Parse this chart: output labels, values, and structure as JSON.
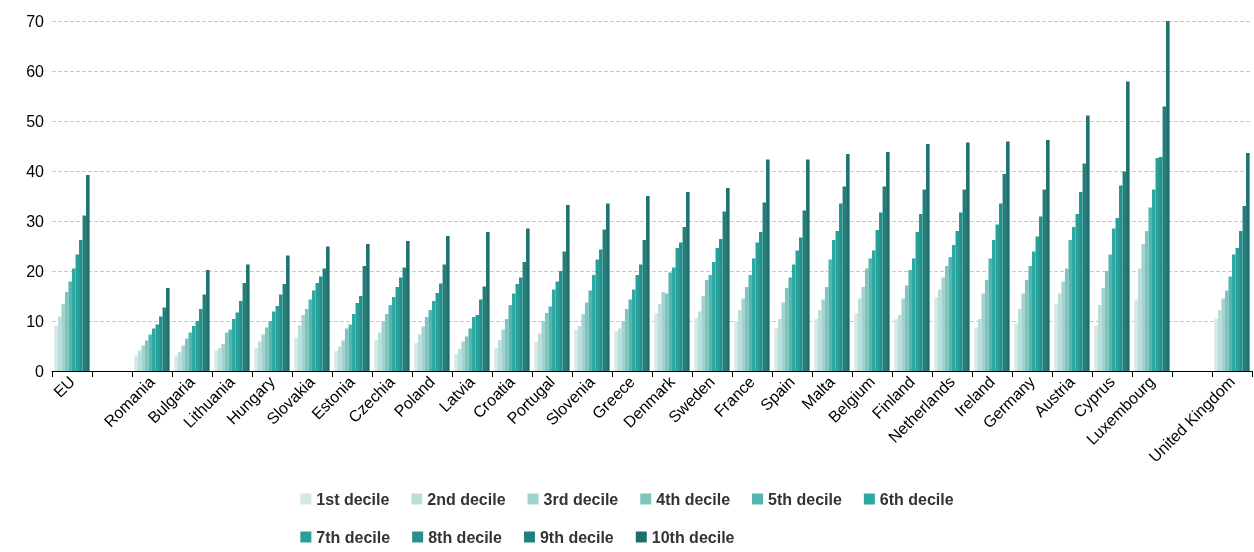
{
  "chart_data": {
    "type": "bar",
    "categories": [
      "EU",
      null,
      "Romania",
      "Bulgaria",
      "Lithuania",
      "Hungary",
      "Slovakia",
      "Estonia",
      "Czechia",
      "Poland",
      "Latvia",
      "Croatia",
      "Portugal",
      "Slovenia",
      "Greece",
      "Denmark",
      "Sweden",
      "France",
      "Spain",
      "Malta",
      "Belgium",
      "Finland",
      "Netherlands",
      "Ireland",
      "Germany",
      "Austria",
      "Cyprus",
      "Luxembourg",
      null,
      "United Kingdom"
    ],
    "series": [
      {
        "name": "1st decile",
        "color": "#d3e8e7",
        "values": [
          9.1,
          null,
          3.1,
          3.1,
          4.1,
          4.6,
          6.7,
          4.0,
          6.2,
          5.6,
          3.4,
          4.6,
          5.9,
          8.3,
          8.0,
          11.6,
          10.6,
          10.0,
          8.5,
          10.4,
          11.6,
          10.4,
          14.8,
          8.7,
          9.5,
          13.4,
          9.1,
          14.3,
          null,
          10.4
        ]
      },
      {
        "name": "2nd decile",
        "color": "#bcdedb",
        "values": [
          10.9,
          null,
          4.1,
          3.8,
          4.6,
          5.9,
          9.1,
          4.9,
          7.7,
          7.3,
          4.4,
          6.2,
          7.5,
          9.0,
          8.5,
          13.4,
          11.9,
          12.2,
          10.4,
          12.2,
          14.5,
          11.2,
          16.3,
          10.4,
          12.4,
          15.5,
          13.2,
          20.5,
          null,
          12.2
        ]
      },
      {
        "name": "3rd decile",
        "color": "#a2d2ce",
        "values": [
          13.4,
          null,
          5.1,
          5.1,
          5.4,
          7.3,
          11.2,
          6.1,
          10.0,
          8.9,
          5.9,
          8.3,
          10.0,
          11.4,
          10.0,
          15.8,
          15.0,
          14.5,
          13.7,
          14.3,
          16.8,
          14.5,
          18.7,
          15.5,
          15.5,
          17.9,
          16.6,
          25.4,
          null,
          14.5
        ]
      },
      {
        "name": "4th decile",
        "color": "#80c4bf",
        "values": [
          15.8,
          null,
          6.1,
          6.5,
          7.7,
          8.7,
          12.4,
          8.5,
          11.4,
          10.8,
          6.9,
          10.4,
          11.6,
          13.7,
          12.4,
          15.5,
          18.2,
          16.8,
          16.6,
          16.8,
          20.5,
          17.1,
          21.0,
          18.2,
          18.2,
          20.5,
          20.0,
          28.0,
          null,
          16.1
        ]
      },
      {
        "name": "5th decile",
        "color": "#52b5af",
        "values": [
          17.9,
          null,
          7.3,
          7.7,
          8.3,
          10.0,
          14.3,
          9.3,
          13.2,
          12.2,
          8.5,
          13.2,
          12.9,
          16.1,
          14.3,
          19.7,
          19.2,
          19.2,
          18.7,
          22.3,
          22.5,
          20.2,
          22.8,
          22.5,
          21.0,
          26.2,
          23.3,
          32.7,
          null,
          18.9
        ]
      },
      {
        "name": "6th decile",
        "color": "#2ca9a3",
        "values": [
          20.5,
          null,
          8.5,
          9.0,
          10.4,
          11.9,
          16.1,
          11.4,
          14.8,
          14.0,
          10.8,
          15.5,
          16.3,
          19.2,
          16.3,
          20.7,
          21.8,
          22.5,
          21.3,
          26.2,
          24.1,
          22.5,
          25.2,
          26.2,
          23.9,
          28.8,
          28.5,
          36.3,
          null,
          23.3
        ]
      },
      {
        "name": "7th decile",
        "color": "#28a09a",
        "values": [
          23.3,
          null,
          9.3,
          10.0,
          11.7,
          13.0,
          17.6,
          13.6,
          16.8,
          15.6,
          11.2,
          17.4,
          17.9,
          22.3,
          19.2,
          24.6,
          24.6,
          25.7,
          24.1,
          28.0,
          28.2,
          27.8,
          28.0,
          29.3,
          26.9,
          31.4,
          30.6,
          42.6,
          null,
          24.6
        ]
      },
      {
        "name": "8th decile",
        "color": "#24918b",
        "values": [
          26.2,
          null,
          10.9,
          12.4,
          14.0,
          15.3,
          18.9,
          15.0,
          18.7,
          17.5,
          14.3,
          18.7,
          20.0,
          24.3,
          21.3,
          25.7,
          26.4,
          27.8,
          26.7,
          33.5,
          31.7,
          31.4,
          31.7,
          33.5,
          30.9,
          35.8,
          37.1,
          42.8,
          null,
          28.0
        ]
      },
      {
        "name": "9th decile",
        "color": "#20817c",
        "values": [
          31.1,
          null,
          12.7,
          15.3,
          17.6,
          17.4,
          20.5,
          21.0,
          20.7,
          21.3,
          16.9,
          21.8,
          23.9,
          28.3,
          26.2,
          28.8,
          31.9,
          33.7,
          32.1,
          36.9,
          36.9,
          36.3,
          36.3,
          39.4,
          36.3,
          41.5,
          39.9,
          52.9,
          null,
          33.0
        ]
      },
      {
        "name": "10th decile",
        "color": "#1c6f6a",
        "values": [
          39.2,
          null,
          16.6,
          20.2,
          21.3,
          23.1,
          24.9,
          25.4,
          26.0,
          27.0,
          27.8,
          28.5,
          33.2,
          33.5,
          35.0,
          35.8,
          36.6,
          42.3,
          42.3,
          43.4,
          43.8,
          45.4,
          45.7,
          45.9,
          46.2,
          51.1,
          57.9,
          70.0,
          null,
          43.6
        ]
      }
    ],
    "ylim": [
      0,
      70
    ],
    "yticks": [
      0,
      10,
      20,
      30,
      40,
      50,
      60,
      70
    ],
    "grid": "y",
    "legend": "bottom"
  }
}
